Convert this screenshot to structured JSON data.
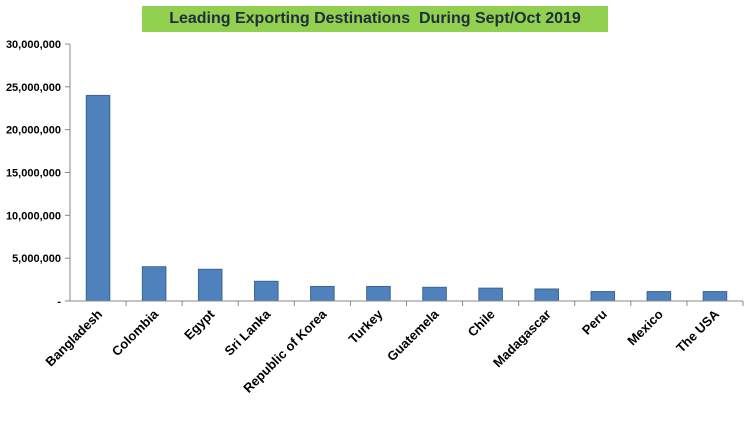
{
  "chart_data": {
    "type": "bar",
    "title": "Leading Exporting Destinations  During Sept/Oct 2019",
    "xlabel": "",
    "ylabel": "",
    "categories": [
      "Bangladesh",
      "Colombia",
      "Egypt",
      "Sri Lanka",
      "Republic of Korea",
      "Turkey",
      "Guatemela",
      "Chile",
      "Madagascar",
      "Peru",
      "Mexico",
      "The USA"
    ],
    "values": [
      24000000,
      4000000,
      3700000,
      2300000,
      1700000,
      1700000,
      1600000,
      1500000,
      1400000,
      1100000,
      1100000,
      1100000
    ],
    "ylim": [
      0,
      30000000
    ],
    "yticks": [
      0,
      5000000,
      10000000,
      15000000,
      20000000,
      25000000,
      30000000
    ],
    "ytick_labels": [
      "-",
      "5,000,000",
      "10,000,000",
      "15,000,000",
      "20,000,000",
      "25,000,000",
      "30,000,000"
    ],
    "bar_color": "#4f81bd",
    "title_bg_color": "#92d050",
    "grid": false,
    "legend": "none"
  }
}
